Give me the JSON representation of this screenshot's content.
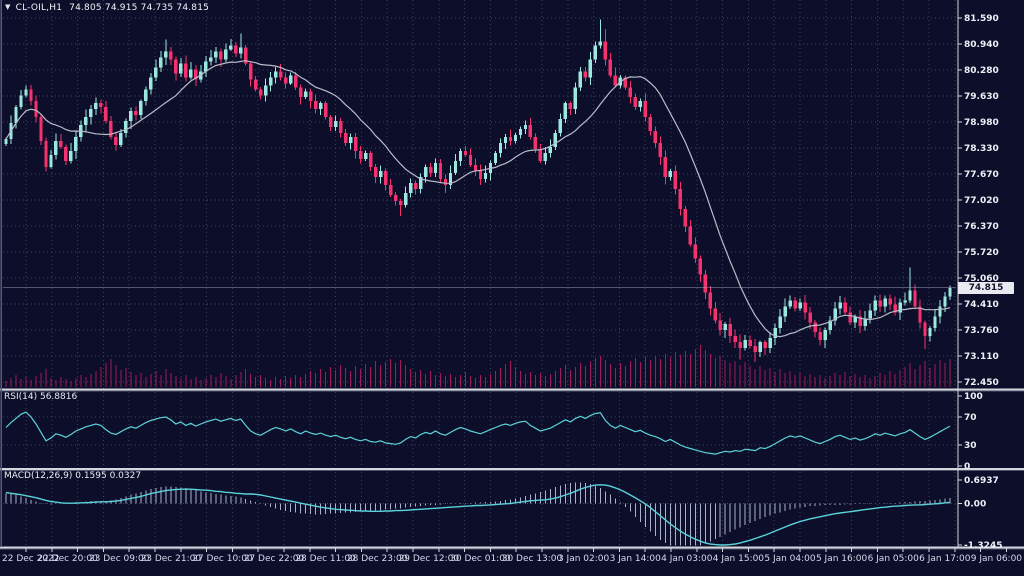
{
  "header": {
    "collapse_icon": "▼",
    "title": "CL-OIL,H1",
    "ohlc_display": "74.805 74.915 74.735 74.815"
  },
  "colors": {
    "background": "#0d0f2a",
    "grid": "#3c4166",
    "bull": "#9ce8e0",
    "bear": "#f5326e",
    "ma_line": "#b9bdc9",
    "volume": "#a01b57",
    "indicator_line": "#5bd2da",
    "histogram": "#a9b1cc",
    "separator": "#d4d6de",
    "separator_shadow": "#51556f",
    "axis_text": "#eef0f8",
    "time_text": "#d6daea",
    "price_tag_bg": "#e9eaf0",
    "price_tag_text": "#14162e",
    "current_price_line": "#9aa0b4",
    "left_border": "#565b80"
  },
  "time_axis": {
    "labels": [
      "22 Dec 2022",
      "22 Dec 20:00",
      "23 Dec 09:00",
      "23 Dec 21:00",
      "27 Dec 10:00",
      "27 Dec 22:00",
      "28 Dec 11:00",
      "28 Dec 23:00",
      "29 Dec 12:00",
      "30 Dec 01:00",
      "30 Dec 13:00",
      "3 Jan 02:00",
      "3 Jan 14:00",
      "4 Jan 03:00",
      "4 Jan 15:00",
      "5 Jan 04:00",
      "5 Jan 16:00",
      "6 Jan 05:00",
      "6 Jan 17:00",
      "9 Jan 06:00"
    ]
  },
  "chart_data": [
    {
      "type": "candlestick",
      "title": "CL-OIL,H1",
      "symbol": "CL-OIL",
      "timeframe": "H1",
      "ohlc_display": "74.805 74.915 74.735 74.815",
      "open": 74.805,
      "high": 74.915,
      "low": 74.735,
      "close": 74.815,
      "last_price": 74.815,
      "last_price_display": "74.815",
      "ylim": [
        72.45,
        81.59
      ],
      "y_axis_labels": [
        "81.590",
        "80.940",
        "80.280",
        "79.630",
        "78.980",
        "78.330",
        "77.670",
        "77.020",
        "76.370",
        "75.720",
        "75.060",
        "74.410",
        "73.760",
        "73.110",
        "72.450"
      ],
      "ma_period": 14,
      "closes": [
        78.55,
        78.95,
        79.35,
        79.65,
        79.8,
        79.5,
        79.1,
        78.5,
        77.85,
        78.15,
        78.5,
        78.35,
        78.0,
        78.25,
        78.6,
        78.9,
        79.1,
        79.3,
        79.45,
        79.35,
        79.0,
        78.6,
        78.4,
        78.7,
        79.0,
        79.25,
        79.15,
        79.5,
        79.8,
        80.1,
        80.35,
        80.6,
        80.75,
        80.55,
        80.2,
        80.45,
        80.1,
        80.3,
        80.05,
        80.25,
        80.5,
        80.6,
        80.75,
        80.55,
        80.8,
        80.9,
        80.7,
        80.85,
        80.45,
        80.05,
        79.8,
        79.65,
        79.9,
        80.1,
        80.25,
        80.1,
        79.95,
        80.15,
        79.85,
        79.6,
        79.75,
        79.5,
        79.3,
        79.45,
        79.1,
        78.85,
        79.0,
        78.7,
        78.45,
        78.6,
        78.25,
        78.05,
        78.2,
        77.85,
        77.6,
        77.75,
        77.4,
        77.15,
        77.0,
        76.9,
        77.2,
        77.45,
        77.3,
        77.6,
        77.85,
        77.7,
        77.95,
        77.55,
        77.4,
        77.7,
        78.0,
        78.25,
        78.15,
        77.9,
        77.75,
        77.55,
        77.7,
        77.95,
        78.2,
        78.45,
        78.6,
        78.5,
        78.65,
        78.8,
        78.9,
        78.6,
        78.3,
        78.0,
        78.2,
        78.35,
        78.7,
        79.05,
        79.45,
        79.3,
        79.85,
        80.25,
        80.1,
        80.55,
        80.9,
        81.0,
        80.55,
        80.15,
        79.9,
        80.1,
        79.85,
        79.6,
        79.35,
        79.5,
        79.1,
        78.75,
        78.45,
        78.1,
        77.6,
        77.75,
        77.3,
        76.8,
        76.35,
        75.9,
        75.55,
        75.15,
        74.7,
        74.3,
        74.0,
        73.75,
        73.9,
        73.6,
        73.45,
        73.3,
        73.5,
        73.35,
        73.2,
        73.45,
        73.3,
        73.55,
        73.8,
        74.1,
        74.35,
        74.5,
        74.3,
        74.45,
        74.2,
        73.95,
        73.7,
        73.5,
        73.75,
        74.0,
        74.3,
        74.45,
        74.2,
        73.95,
        74.1,
        73.85,
        74.05,
        74.25,
        74.5,
        74.35,
        74.55,
        74.4,
        74.2,
        74.45,
        74.5,
        74.75,
        74.35,
        73.95,
        73.6,
        73.8,
        74.1,
        74.35,
        74.6,
        74.815
      ],
      "wick_overrides": {
        "32": [
          81.05,
          null
        ],
        "47": [
          81.2,
          null
        ],
        "79": [
          null,
          76.62
        ],
        "119": [
          81.55,
          null
        ],
        "120": [
          81.32,
          null
        ],
        "147": [
          null,
          73.02
        ],
        "150": [
          null,
          72.95
        ],
        "181": [
          75.32,
          null
        ],
        "184": [
          null,
          73.28
        ]
      },
      "volumes": [
        6,
        9,
        12,
        8,
        10,
        7,
        11,
        14,
        18,
        9,
        7,
        10,
        8,
        6,
        9,
        12,
        10,
        13,
        16,
        20,
        24,
        28,
        22,
        17,
        19,
        15,
        12,
        14,
        10,
        13,
        16,
        12,
        18,
        14,
        11,
        9,
        12,
        8,
        10,
        7,
        9,
        12,
        10,
        14,
        11,
        8,
        12,
        15,
        18,
        13,
        10,
        12,
        9,
        7,
        10,
        8,
        11,
        9,
        12,
        10,
        13,
        16,
        14,
        18,
        15,
        20,
        17,
        22,
        19,
        16,
        21,
        18,
        23,
        20,
        26,
        22,
        25,
        28,
        24,
        27,
        22,
        18,
        15,
        17,
        13,
        16,
        12,
        14,
        11,
        13,
        10,
        12,
        15,
        11,
        9,
        12,
        10,
        13,
        16,
        19,
        23,
        26,
        20,
        16,
        13,
        15,
        12,
        14,
        11,
        13,
        16,
        19,
        22,
        17,
        20,
        24,
        21,
        26,
        29,
        31,
        27,
        23,
        19,
        24,
        21,
        26,
        29,
        25,
        30,
        27,
        31,
        28,
        33,
        30,
        35,
        32,
        36,
        33,
        38,
        42,
        37,
        33,
        29,
        31,
        27,
        24,
        26,
        22,
        25,
        21,
        18,
        21,
        17,
        19,
        15,
        18,
        14,
        16,
        12,
        15,
        11,
        13,
        10,
        12,
        9,
        11,
        14,
        12,
        15,
        11,
        13,
        10,
        12,
        9,
        11,
        14,
        12,
        16,
        13,
        17,
        20,
        24,
        18,
        22,
        26,
        19,
        23,
        27,
        24,
        28
      ]
    },
    {
      "type": "line",
      "name": "RSI(14)",
      "value": 56.8816,
      "value_display": "56.8816",
      "levels": [
        100,
        70,
        30,
        0
      ],
      "level_labels": [
        "100",
        "70",
        "30",
        "0"
      ],
      "values": [
        55,
        62,
        68,
        74,
        77,
        70,
        60,
        48,
        36,
        40,
        46,
        44,
        41,
        45,
        50,
        53,
        56,
        58,
        60,
        58,
        52,
        47,
        45,
        49,
        53,
        56,
        54,
        58,
        62,
        65,
        67,
        69,
        70,
        66,
        60,
        63,
        58,
        61,
        57,
        60,
        63,
        65,
        67,
        64,
        66,
        68,
        65,
        67,
        58,
        50,
        46,
        44,
        48,
        52,
        55,
        53,
        50,
        53,
        49,
        46,
        50,
        47,
        45,
        47,
        44,
        42,
        44,
        41,
        39,
        41,
        38,
        36,
        38,
        35,
        34,
        36,
        33,
        32,
        31,
        33,
        38,
        42,
        40,
        45,
        48,
        46,
        50,
        46,
        44,
        48,
        52,
        55,
        53,
        50,
        48,
        46,
        49,
        52,
        55,
        58,
        60,
        58,
        61,
        63,
        64,
        58,
        54,
        50,
        52,
        54,
        58,
        62,
        66,
        63,
        68,
        71,
        68,
        72,
        75,
        76,
        65,
        58,
        54,
        58,
        55,
        52,
        49,
        51,
        47,
        44,
        42,
        39,
        35,
        38,
        34,
        30,
        27,
        25,
        23,
        21,
        19,
        18,
        17,
        19,
        21,
        20,
        22,
        21,
        24,
        23,
        22,
        26,
        25,
        28,
        32,
        36,
        40,
        43,
        41,
        43,
        40,
        37,
        34,
        32,
        35,
        38,
        42,
        44,
        41,
        38,
        40,
        37,
        39,
        42,
        46,
        44,
        47,
        45,
        43,
        46,
        48,
        52,
        47,
        42,
        38,
        41,
        45,
        49,
        53,
        57
      ]
    },
    {
      "type": "macd",
      "name": "MACD(12,26,9)",
      "macd_value": 0.1595,
      "signal_value": 0.0327,
      "values_display": "0.1595 0.0327",
      "scale_labels": [
        "0.6937",
        "0.00",
        "-1.3245"
      ],
      "histogram": [
        0.3,
        0.28,
        0.25,
        0.21,
        0.16,
        0.11,
        0.06,
        0.02,
        -0.02,
        -0.03,
        -0.02,
        0.0,
        0.01,
        0.02,
        0.04,
        0.05,
        0.06,
        0.07,
        0.08,
        0.08,
        0.07,
        0.09,
        0.12,
        0.16,
        0.21,
        0.26,
        0.3,
        0.34,
        0.38,
        0.42,
        0.45,
        0.48,
        0.5,
        0.5,
        0.49,
        0.47,
        0.45,
        0.42,
        0.39,
        0.36,
        0.33,
        0.31,
        0.28,
        0.26,
        0.24,
        0.22,
        0.2,
        0.17,
        0.13,
        0.09,
        0.04,
        -0.01,
        -0.06,
        -0.11,
        -0.15,
        -0.19,
        -0.22,
        -0.25,
        -0.27,
        -0.29,
        -0.3,
        -0.31,
        -0.32,
        -0.32,
        -0.31,
        -0.3,
        -0.29,
        -0.28,
        -0.27,
        -0.26,
        -0.25,
        -0.24,
        -0.23,
        -0.22,
        -0.21,
        -0.2,
        -0.18,
        -0.17,
        -0.15,
        -0.14,
        -0.12,
        -0.11,
        -0.09,
        -0.08,
        -0.06,
        -0.05,
        -0.04,
        -0.03,
        -0.02,
        -0.01,
        0.0,
        0.01,
        0.02,
        0.02,
        0.03,
        0.03,
        0.04,
        0.05,
        0.06,
        0.08,
        0.1,
        0.12,
        0.15,
        0.18,
        0.22,
        0.26,
        0.3,
        0.34,
        0.38,
        0.43,
        0.48,
        0.53,
        0.57,
        0.6,
        0.62,
        0.62,
        0.6,
        0.57,
        0.52,
        0.45,
        0.36,
        0.26,
        0.15,
        0.03,
        -0.1,
        -0.24,
        -0.39,
        -0.54,
        -0.69,
        -0.83,
        -0.96,
        -1.07,
        -1.16,
        -1.23,
        -1.28,
        -1.31,
        -1.32,
        -1.31,
        -1.28,
        -1.24,
        -1.18,
        -1.12,
        -1.05,
        -0.98,
        -0.91,
        -0.84,
        -0.77,
        -0.7,
        -0.63,
        -0.57,
        -0.51,
        -0.45,
        -0.4,
        -0.35,
        -0.3,
        -0.26,
        -0.22,
        -0.18,
        -0.15,
        -0.12,
        -0.1,
        -0.08,
        -0.07,
        -0.06,
        -0.05,
        -0.05,
        -0.04,
        -0.04,
        -0.03,
        -0.03,
        -0.02,
        -0.02,
        -0.01,
        -0.01,
        0.0,
        0.0,
        0.01,
        0.01,
        0.02,
        0.03,
        0.04,
        0.05,
        0.06,
        0.07,
        0.08,
        0.09,
        0.11,
        0.12,
        0.14,
        0.16
      ],
      "signal": [
        0.32,
        0.3,
        0.28,
        0.26,
        0.23,
        0.2,
        0.17,
        0.13,
        0.09,
        0.06,
        0.04,
        0.02,
        0.01,
        0.01,
        0.01,
        0.02,
        0.02,
        0.03,
        0.04,
        0.05,
        0.05,
        0.06,
        0.07,
        0.09,
        0.12,
        0.15,
        0.18,
        0.21,
        0.25,
        0.29,
        0.32,
        0.35,
        0.38,
        0.4,
        0.41,
        0.42,
        0.42,
        0.42,
        0.41,
        0.4,
        0.39,
        0.38,
        0.36,
        0.35,
        0.33,
        0.32,
        0.3,
        0.29,
        0.28,
        0.28,
        0.27,
        0.25,
        0.22,
        0.19,
        0.16,
        0.13,
        0.1,
        0.07,
        0.04,
        0.01,
        -0.02,
        -0.05,
        -0.08,
        -0.11,
        -0.13,
        -0.15,
        -0.17,
        -0.18,
        -0.19,
        -0.2,
        -0.21,
        -0.22,
        -0.22,
        -0.23,
        -0.23,
        -0.23,
        -0.22,
        -0.22,
        -0.21,
        -0.21,
        -0.2,
        -0.19,
        -0.18,
        -0.17,
        -0.16,
        -0.15,
        -0.14,
        -0.13,
        -0.12,
        -0.11,
        -0.1,
        -0.09,
        -0.08,
        -0.07,
        -0.06,
        -0.06,
        -0.05,
        -0.04,
        -0.03,
        -0.02,
        -0.01,
        0.0,
        0.02,
        0.04,
        0.06,
        0.08,
        0.09,
        0.1,
        0.11,
        0.13,
        0.16,
        0.2,
        0.25,
        0.3,
        0.36,
        0.42,
        0.47,
        0.51,
        0.54,
        0.55,
        0.54,
        0.51,
        0.46,
        0.4,
        0.33,
        0.25,
        0.17,
        0.08,
        -0.01,
        -0.12,
        -0.24,
        -0.36,
        -0.48,
        -0.6,
        -0.71,
        -0.81,
        -0.9,
        -0.98,
        -1.05,
        -1.11,
        -1.16,
        -1.19,
        -1.21,
        -1.22,
        -1.22,
        -1.21,
        -1.19,
        -1.16,
        -1.12,
        -1.08,
        -1.03,
        -0.98,
        -0.93,
        -0.87,
        -0.81,
        -0.75,
        -0.69,
        -0.63,
        -0.58,
        -0.53,
        -0.49,
        -0.45,
        -0.42,
        -0.39,
        -0.36,
        -0.33,
        -0.3,
        -0.28,
        -0.26,
        -0.24,
        -0.22,
        -0.2,
        -0.18,
        -0.16,
        -0.14,
        -0.12,
        -0.11,
        -0.09,
        -0.08,
        -0.07,
        -0.06,
        -0.05,
        -0.04,
        -0.04,
        -0.03,
        -0.02,
        -0.01,
        0.0,
        0.02,
        0.03
      ]
    }
  ]
}
